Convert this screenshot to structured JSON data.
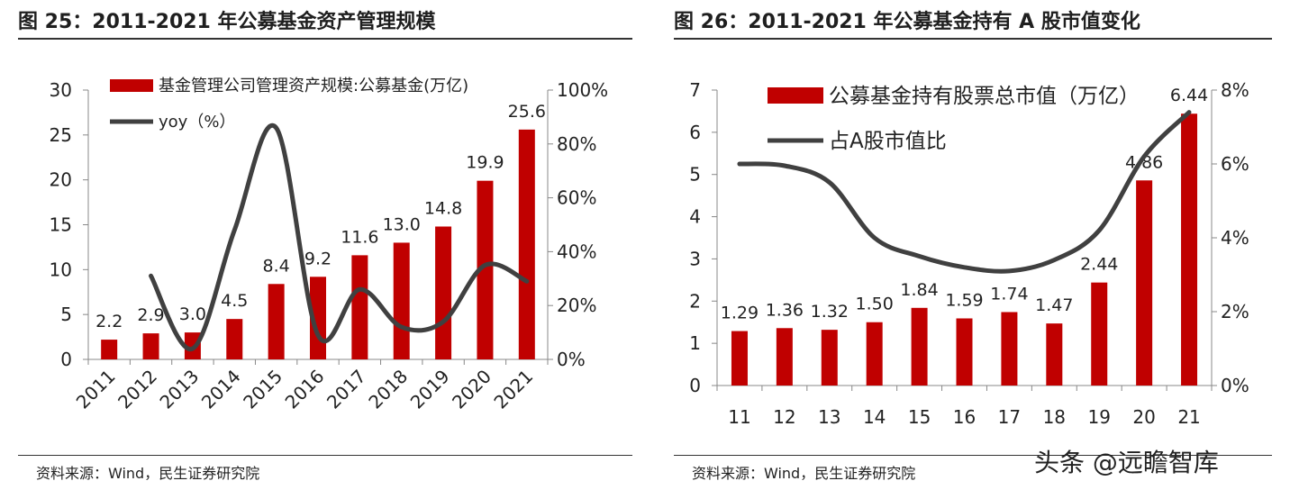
{
  "chart_data": [
    {
      "type": "bar",
      "title": "图 25：2011-2021 年公募基金资产管理规模",
      "source": "资料来源：Wind，民生证券研究院",
      "categories": [
        "2011",
        "2012",
        "2013",
        "2014",
        "2015",
        "2016",
        "2017",
        "2018",
        "2019",
        "2020",
        "2021"
      ],
      "series": [
        {
          "name": "基金管理公司管理资产规模:公募基金(万亿)",
          "type": "bar",
          "axis": "left",
          "values": [
            2.2,
            2.9,
            3.0,
            4.5,
            8.4,
            9.2,
            11.6,
            13.0,
            14.8,
            19.9,
            25.6
          ],
          "labels": [
            "2.2",
            "2.9",
            "3.0",
            "4.5",
            "8.4",
            "9.2",
            "11.6",
            "13.0",
            "14.8",
            "19.9",
            "25.6"
          ]
        },
        {
          "name": "yoy（%）",
          "type": "line",
          "axis": "right",
          "values": [
            null,
            31,
            4,
            48,
            86,
            9,
            26,
            12,
            14,
            35,
            29
          ]
        }
      ],
      "ylim": [
        0,
        30
      ],
      "yticks": [
        "0",
        "5",
        "10",
        "15",
        "20",
        "25",
        "30"
      ],
      "y2lim": [
        0,
        100
      ],
      "y2ticks": [
        "0%",
        "20%",
        "40%",
        "60%",
        "80%",
        "100%"
      ],
      "grid": false,
      "legend": "top-left",
      "colors": {
        "bar": "#c00000",
        "line": "#404040"
      }
    },
    {
      "type": "bar",
      "title": "图 26：2011-2021 年公募基金持有 A 股市值变化",
      "source": "资料来源：Wind，民生证券研究院",
      "categories": [
        "11",
        "12",
        "13",
        "14",
        "15",
        "16",
        "17",
        "18",
        "19",
        "20",
        "21"
      ],
      "series": [
        {
          "name": "公募基金持有股票总市值（万亿）",
          "type": "bar",
          "axis": "left",
          "values": [
            1.29,
            1.36,
            1.32,
            1.5,
            1.84,
            1.59,
            1.74,
            1.47,
            2.44,
            4.86,
            6.44
          ],
          "labels": [
            "1.29",
            "1.36",
            "1.32",
            "1.50",
            "1.84",
            "1.59",
            "1.74",
            "1.47",
            "2.44",
            "4.86",
            "6.44"
          ]
        },
        {
          "name": "占A股市值比",
          "type": "line",
          "axis": "right",
          "values": [
            6.0,
            5.95,
            5.5,
            4.0,
            3.5,
            3.2,
            3.1,
            3.4,
            4.2,
            6.2,
            7.4
          ]
        }
      ],
      "ylim": [
        0,
        7
      ],
      "yticks": [
        "0",
        "1",
        "2",
        "3",
        "4",
        "5",
        "6",
        "7"
      ],
      "y2lim": [
        0,
        8
      ],
      "y2ticks": [
        "0%",
        "2%",
        "4%",
        "6%",
        "8%"
      ],
      "grid": false,
      "legend": "top-left",
      "colors": {
        "bar": "#c00000",
        "line": "#404040"
      }
    }
  ],
  "watermark": "头条 @远瞻智库"
}
